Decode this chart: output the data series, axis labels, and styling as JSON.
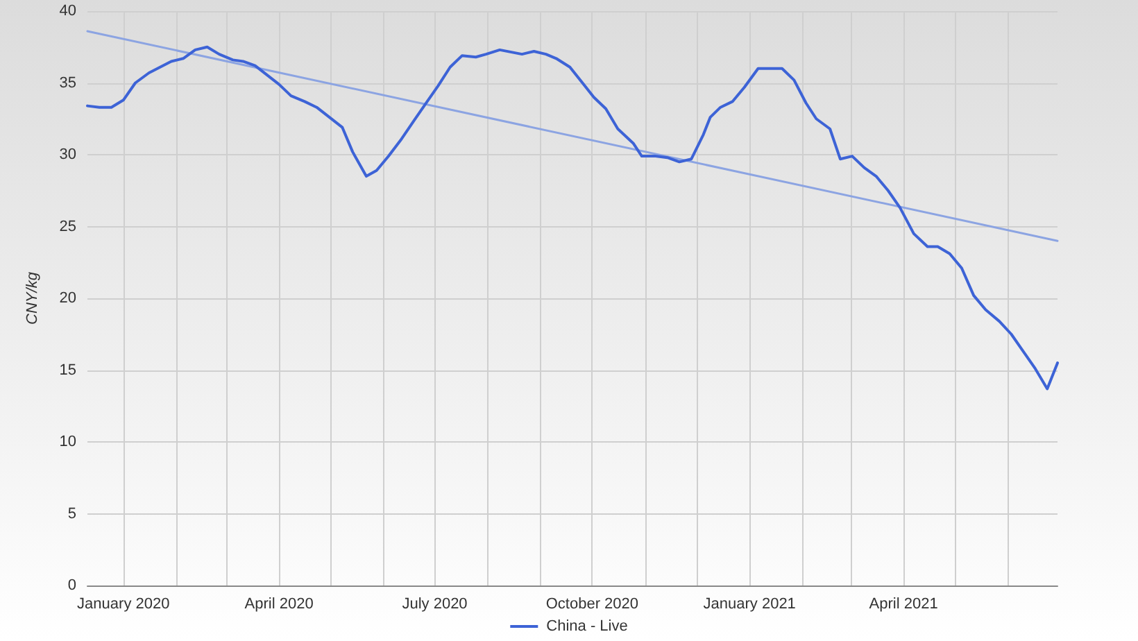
{
  "chart_data": {
    "type": "line",
    "ylabel": "CNY/kg",
    "xlim": [
      "2019-12-11",
      "2021-06-30"
    ],
    "xticks": [
      {
        "value": "2020-01-01",
        "label": "January 2020"
      },
      {
        "value": "2020-02-01",
        "label": null
      },
      {
        "value": "2020-03-01",
        "label": null
      },
      {
        "value": "2020-04-01",
        "label": "April 2020"
      },
      {
        "value": "2020-05-01",
        "label": null
      },
      {
        "value": "2020-06-01",
        "label": null
      },
      {
        "value": "2020-07-01",
        "label": "July 2020"
      },
      {
        "value": "2020-08-01",
        "label": null
      },
      {
        "value": "2020-09-01",
        "label": null
      },
      {
        "value": "2020-10-01",
        "label": "October 2020"
      },
      {
        "value": "2020-11-01",
        "label": null
      },
      {
        "value": "2020-12-01",
        "label": null
      },
      {
        "value": "2021-01-01",
        "label": "January 2021"
      },
      {
        "value": "2021-02-01",
        "label": null
      },
      {
        "value": "2021-03-01",
        "label": null
      },
      {
        "value": "2021-04-01",
        "label": "April 2021"
      },
      {
        "value": "2021-05-01",
        "label": null
      },
      {
        "value": "2021-06-01",
        "label": null
      }
    ],
    "ylim": [
      0,
      40
    ],
    "yticks": [
      0,
      5,
      10,
      15,
      20,
      25,
      30,
      35,
      40
    ],
    "grid": true,
    "legend": "bottom",
    "marker": "none",
    "line_style": "solid",
    "series": [
      {
        "name": "China - Live",
        "color": "#3d63d6",
        "x": [
          "2019-12-11",
          "2019-12-18",
          "2019-12-25",
          "2020-01-01",
          "2020-01-08",
          "2020-01-16",
          "2020-01-29",
          "2020-02-05",
          "2020-02-12",
          "2020-02-19",
          "2020-02-26",
          "2020-03-05",
          "2020-03-11",
          "2020-03-18",
          "2020-04-01",
          "2020-04-08",
          "2020-04-16",
          "2020-04-23",
          "2020-05-08",
          "2020-05-14",
          "2020-05-22",
          "2020-05-28",
          "2020-06-04",
          "2020-06-11",
          "2020-06-19",
          "2020-06-26",
          "2020-07-03",
          "2020-07-10",
          "2020-07-17",
          "2020-07-25",
          "2020-07-31",
          "2020-08-08",
          "2020-08-21",
          "2020-08-28",
          "2020-09-04",
          "2020-09-10",
          "2020-09-18",
          "2020-09-26",
          "2020-10-02",
          "2020-10-09",
          "2020-10-16",
          "2020-10-25",
          "2020-10-30",
          "2020-11-07",
          "2020-11-14",
          "2020-11-21",
          "2020-11-28",
          "2020-12-05",
          "2020-12-09",
          "2020-12-15",
          "2020-12-22",
          "2020-12-29",
          "2021-01-06",
          "2021-01-20",
          "2021-01-27",
          "2021-02-03",
          "2021-02-09",
          "2021-02-17",
          "2021-02-23",
          "2021-03-02",
          "2021-03-09",
          "2021-03-16",
          "2021-03-23",
          "2021-03-30",
          "2021-04-07",
          "2021-04-15",
          "2021-04-21",
          "2021-04-28",
          "2021-05-05",
          "2021-05-12",
          "2021-05-19",
          "2021-05-27",
          "2021-06-03",
          "2021-06-10",
          "2021-06-17",
          "2021-06-24",
          "2021-06-30"
        ],
        "values": [
          33.4,
          33.3,
          33.3,
          33.8,
          35.0,
          35.7,
          36.5,
          36.7,
          37.3,
          37.5,
          37.0,
          36.6,
          36.5,
          36.2,
          34.9,
          34.1,
          33.7,
          33.3,
          31.9,
          30.2,
          28.5,
          28.9,
          29.9,
          31.0,
          32.4,
          33.6,
          34.8,
          36.1,
          36.9,
          36.8,
          37.0,
          37.3,
          37.0,
          37.2,
          37.0,
          36.7,
          36.1,
          34.9,
          34.0,
          33.2,
          31.8,
          30.8,
          29.9,
          29.9,
          29.8,
          29.5,
          29.7,
          31.4,
          32.6,
          33.3,
          33.7,
          34.7,
          36.0,
          36.0,
          35.2,
          33.6,
          32.5,
          31.8,
          29.7,
          29.9,
          29.1,
          28.5,
          27.5,
          26.3,
          24.5,
          23.6,
          23.6,
          23.1,
          22.1,
          20.2,
          19.2,
          18.4,
          17.5,
          16.3,
          15.1,
          13.7,
          15.5
        ]
      },
      {
        "type": "line",
        "color": "#8ca4e2",
        "x": [
          "2019-12-11",
          "2021-06-30"
        ],
        "values": [
          38.6,
          24.0
        ]
      }
    ]
  }
}
